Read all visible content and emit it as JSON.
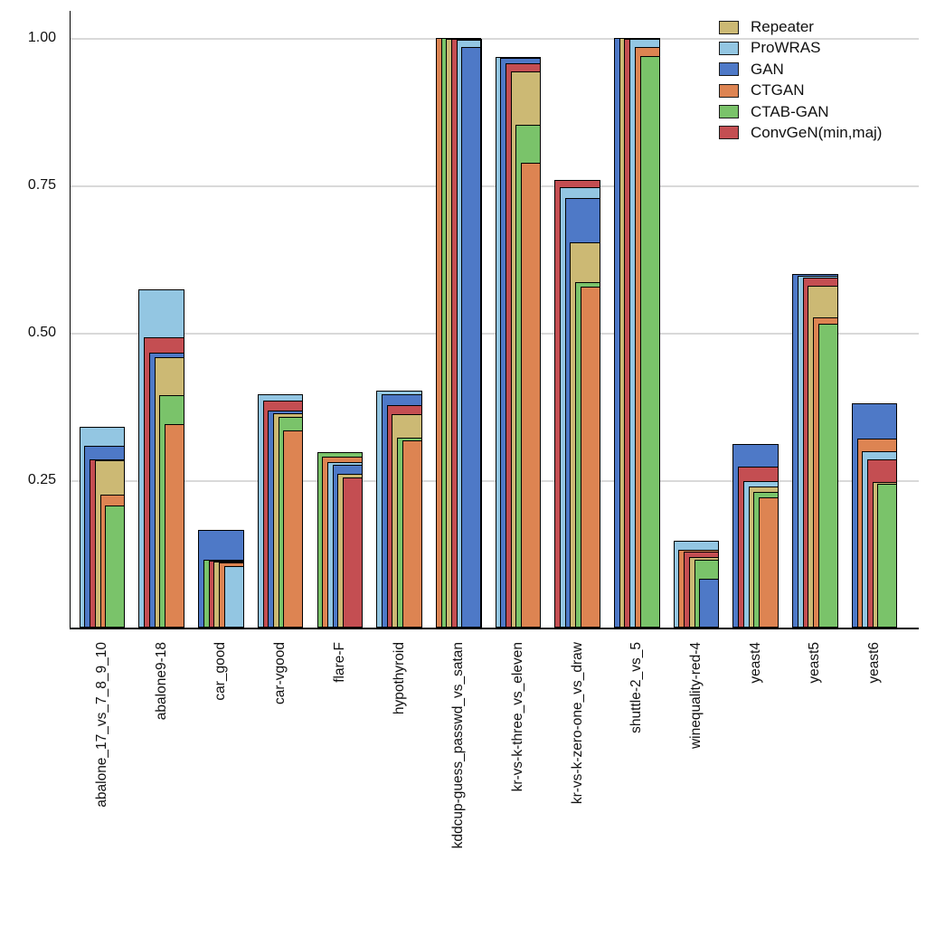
{
  "figure": {
    "background": "#ffffff",
    "grid_color": "#d9d9d9",
    "axis_color": "#000000"
  },
  "legend": {
    "position": "top-right",
    "items": [
      {
        "label": "Repeater",
        "color": "#ccb974"
      },
      {
        "label": "ProWRAS",
        "color": "#93c6e2"
      },
      {
        "label": "GAN",
        "color": "#4e79c7"
      },
      {
        "label": "CTGAN",
        "color": "#dd8452"
      },
      {
        "label": "CTAB-GAN",
        "color": "#7ac36a"
      },
      {
        "label": "ConvGeN(min,maj)",
        "color": "#c44e52"
      }
    ]
  },
  "chart_data": {
    "type": "bar",
    "subtype": "overlapping-nested-bars-sorted-by-value",
    "title": "",
    "xlabel": "",
    "ylabel": "",
    "ylim": [
      0,
      1.05
    ],
    "grid": true,
    "legend_position": "top-right",
    "yticks": [
      {
        "label": "1.00",
        "value": 1.0
      },
      {
        "label": "0.75",
        "value": 0.75
      },
      {
        "label": "0.50",
        "value": 0.5
      },
      {
        "label": "0.25",
        "value": 0.25
      }
    ],
    "categories": [
      "abalone_17_vs_7_8_9_10",
      "abalone9-18",
      "car_good",
      "car-vgood",
      "flare-F",
      "hypothyroid",
      "kddcup-guess_passwd_vs_satan",
      "kr-vs-k-three_vs_eleven",
      "kr-vs-k-zero-one_vs_draw",
      "shuttle-2_vs_5",
      "winequality-red-4",
      "yeast4",
      "yeast5",
      "yeast6"
    ],
    "series": [
      {
        "name": "Repeater",
        "color": "#ccb974",
        "values": [
          0.283,
          0.458,
          0.112,
          0.363,
          0.261,
          0.362,
          0.999,
          0.944,
          0.654,
          0.9995,
          0.119,
          0.24,
          0.579,
          0.247
        ]
      },
      {
        "name": "ProWRAS",
        "color": "#93c6e2",
        "values": [
          0.34,
          0.574,
          0.105,
          0.396,
          0.281,
          0.402,
          0.9975,
          0.968,
          0.747,
          0.998,
          0.147,
          0.248,
          0.597,
          0.299
        ]
      },
      {
        "name": "GAN",
        "color": "#4e79c7",
        "values": [
          0.308,
          0.466,
          0.166,
          0.368,
          0.276,
          0.396,
          0.985,
          0.966,
          0.729,
          1.0,
          0.083,
          0.311,
          0.6,
          0.38
        ]
      },
      {
        "name": "CTGAN",
        "color": "#dd8452",
        "values": [
          0.226,
          0.345,
          0.11,
          0.334,
          0.29,
          0.318,
          1.0,
          0.788,
          0.578,
          0.985,
          0.132,
          0.221,
          0.526,
          0.321
        ]
      },
      {
        "name": "CTAB-GAN",
        "color": "#7ac36a",
        "values": [
          0.207,
          0.394,
          0.115,
          0.357,
          0.298,
          0.322,
          0.9995,
          0.853,
          0.586,
          0.97,
          0.115,
          0.23,
          0.515,
          0.244
        ]
      },
      {
        "name": "ConvGeN(min,maj)",
        "color": "#c44e52",
        "values": [
          0.286,
          0.493,
          0.113,
          0.385,
          0.255,
          0.377,
          0.9985,
          0.957,
          0.759,
          0.999,
          0.129,
          0.273,
          0.593,
          0.286
        ]
      }
    ]
  }
}
